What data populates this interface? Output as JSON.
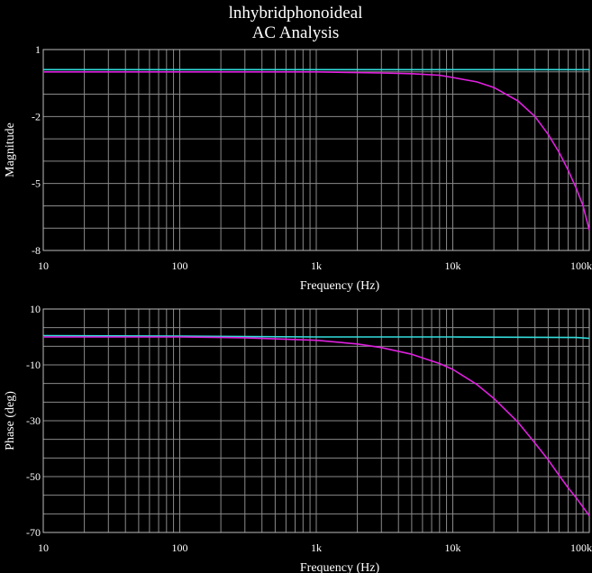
{
  "window": {
    "title_line1": "lnhybridphonoideal",
    "title_line2": "AC Analysis"
  },
  "colors": {
    "background": "#000000",
    "grid": "#8a8a8a",
    "text": "#ffffff",
    "series_cyan": "#33dddd",
    "series_magenta": "#e020e0"
  },
  "chart_data": [
    {
      "type": "line",
      "title": "",
      "xlabel": "Frequency (Hz)",
      "ylabel": "Magnitude",
      "xscale": "log",
      "xlim": [
        10,
        100000
      ],
      "ylim": [
        -8,
        1
      ],
      "x_ticks": [
        10,
        100,
        1000,
        10000,
        100000
      ],
      "x_tick_labels": [
        "10",
        "100",
        "1k",
        "10k",
        "100k"
      ],
      "y_ticks": [
        1,
        -2,
        -5,
        -8
      ],
      "y_tick_labels": [
        "1",
        "-2",
        "-5",
        "-8"
      ],
      "grid": true,
      "series": [
        {
          "color": "#33dddd",
          "x": [
            10,
            100,
            1000,
            10000,
            100000
          ],
          "y": [
            0.1,
            0.1,
            0.1,
            0.1,
            0.1
          ]
        },
        {
          "color": "#e020e0",
          "x": [
            10,
            100,
            1000,
            3000,
            5000,
            8000,
            10000,
            15000,
            20000,
            30000,
            40000,
            50000,
            60000,
            70000,
            80000,
            90000,
            100000
          ],
          "y": [
            0.0,
            0.0,
            0.0,
            -0.05,
            -0.08,
            -0.15,
            -0.25,
            -0.45,
            -0.7,
            -1.3,
            -2.0,
            -2.8,
            -3.6,
            -4.4,
            -5.2,
            -6.0,
            -7.1
          ]
        }
      ]
    },
    {
      "type": "line",
      "title": "",
      "xlabel": "Frequency (Hz)",
      "ylabel": "Phase (deg)",
      "xscale": "log",
      "xlim": [
        10,
        100000
      ],
      "ylim": [
        -70,
        10
      ],
      "x_ticks": [
        10,
        100,
        1000,
        10000,
        100000
      ],
      "x_tick_labels": [
        "10",
        "100",
        "1k",
        "10k",
        "100k"
      ],
      "y_ticks": [
        10,
        -10,
        -30,
        -50,
        -70
      ],
      "y_tick_labels": [
        "10",
        "-10",
        "-30",
        "-50",
        "-70"
      ],
      "grid": true,
      "series": [
        {
          "color": "#33dddd",
          "x": [
            10,
            100,
            1000,
            10000,
            80000,
            100000
          ],
          "y": [
            0.5,
            0.3,
            0.0,
            0.0,
            -0.2,
            -0.5
          ]
        },
        {
          "color": "#e020e0",
          "x": [
            10,
            100,
            300,
            1000,
            2000,
            3000,
            5000,
            8000,
            10000,
            15000,
            20000,
            30000,
            40000,
            50000,
            60000,
            70000,
            80000,
            100000
          ],
          "y": [
            0.0,
            0.0,
            -0.3,
            -1.2,
            -2.5,
            -3.8,
            -6.2,
            -9.5,
            -11.6,
            -17.0,
            -22.0,
            -30.5,
            -38.0,
            -44.0,
            -49.5,
            -54.0,
            -57.5,
            -64.0
          ]
        }
      ]
    }
  ]
}
